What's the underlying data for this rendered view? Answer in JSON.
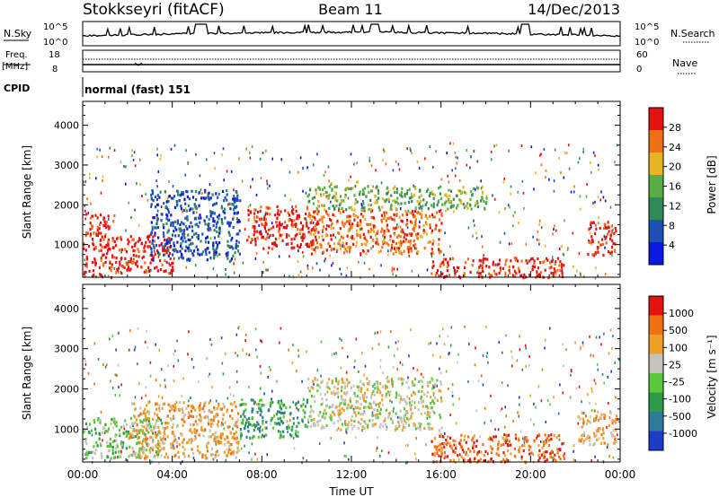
{
  "header": {
    "station": "Stokkseyri (fitACF)",
    "beam": "Beam 11",
    "date": "14/Dec/2013"
  },
  "noise_panel": {
    "left_label": "N.Sky",
    "right_label": "N.Search",
    "left_ticks": [
      "10^5",
      "10^0"
    ],
    "right_ticks": [
      "10^5",
      "10^0"
    ]
  },
  "freq_panel": {
    "left_label_1": "Freq.",
    "left_label_2": "[MHz]",
    "right_label": "Nave",
    "left_ticks": [
      "18",
      "8"
    ],
    "right_ticks": [
      "60",
      "0"
    ]
  },
  "cpid": {
    "label": "CPID",
    "value": "normal (fast) 151"
  },
  "x_axis": {
    "label": "Time UT",
    "ticks": [
      "00:00",
      "04:00",
      "08:00",
      "12:00",
      "16:00",
      "20:00",
      "00:00"
    ]
  },
  "chart_data": [
    {
      "type": "heatmap",
      "quantity": "Power",
      "ylabel": "Slant Range [km]",
      "xlabel": "",
      "colorbar_label": "Power [dB]",
      "x_range_hours": [
        0,
        24
      ],
      "y_range_km": [
        180,
        4600
      ],
      "y_ticks": [
        1000,
        2000,
        3000,
        4000
      ],
      "colorbar_ticks": [
        "28",
        "24",
        "20",
        "16",
        "12",
        "8",
        "4"
      ],
      "colors": [
        "#0a18e0",
        "#1e4fb4",
        "#2e8a58",
        "#58ae44",
        "#e7b424",
        "#f27014",
        "#e41212"
      ],
      "scatter_regions": [
        {
          "x": [
            0.0,
            1.4
          ],
          "y": [
            200,
            1800
          ],
          "level": 6
        },
        {
          "x": [
            1.4,
            4.0
          ],
          "y": [
            300,
            1300
          ],
          "level": 6
        },
        {
          "x": [
            7.3,
            10.5
          ],
          "y": [
            900,
            2000
          ],
          "level": 6
        },
        {
          "x": [
            10.0,
            16.0
          ],
          "y": [
            800,
            1900
          ],
          "level": 5
        },
        {
          "x": [
            15.5,
            21.5
          ],
          "y": [
            200,
            700
          ],
          "level": 6
        },
        {
          "x": [
            22.5,
            23.8
          ],
          "y": [
            700,
            1600
          ],
          "level": 6
        },
        {
          "x": [
            3.0,
            7.0
          ],
          "y": [
            600,
            2400
          ],
          "level": 1
        },
        {
          "x": [
            10.0,
            18.0
          ],
          "y": [
            1900,
            2500
          ],
          "level": 3
        }
      ]
    },
    {
      "type": "heatmap",
      "quantity": "Velocity",
      "ylabel": "Slant Range [km]",
      "xlabel": "Time UT",
      "colorbar_label": "Velocity [m s⁻¹]",
      "x_range_hours": [
        0,
        24
      ],
      "y_range_km": [
        180,
        4600
      ],
      "y_ticks": [
        1000,
        2000,
        3000,
        4000
      ],
      "colorbar_ticks": [
        "1000",
        "500",
        "100",
        "25",
        "-25",
        "-100",
        "-500",
        "-1000"
      ],
      "colors": [
        "#1e3cc8",
        "#2e7a9c",
        "#2e9a4a",
        "#5ac83c",
        "#c4c4bc",
        "#f0a028",
        "#f27014",
        "#e41212"
      ],
      "scatter_regions": [
        {
          "x": [
            0.0,
            3.5
          ],
          "y": [
            300,
            1300
          ],
          "level": 3
        },
        {
          "x": [
            2.0,
            7.0
          ],
          "y": [
            300,
            1700
          ],
          "level": 5
        },
        {
          "x": [
            7.0,
            10.0
          ],
          "y": [
            800,
            1800
          ],
          "level": 2
        },
        {
          "x": [
            10.0,
            16.0
          ],
          "y": [
            1000,
            2300
          ],
          "level": 4
        },
        {
          "x": [
            15.5,
            21.5
          ],
          "y": [
            200,
            900
          ],
          "level": 6
        },
        {
          "x": [
            22.0,
            23.8
          ],
          "y": [
            600,
            1500
          ],
          "level": 5
        }
      ]
    }
  ]
}
